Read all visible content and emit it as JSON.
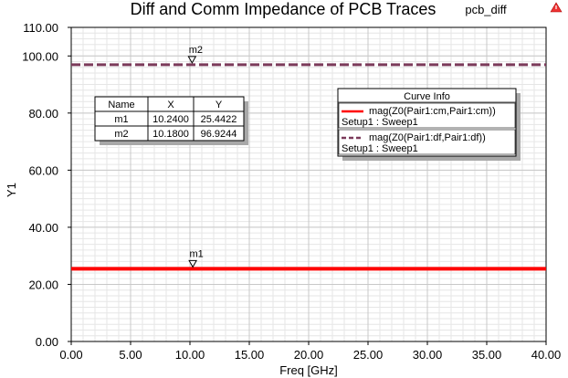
{
  "chart_data": {
    "type": "line",
    "title": "Diff and Comm Impedance of PCB Traces",
    "project_label": "pcb_diff",
    "xlabel": "Freq [GHz]",
    "ylabel": "Y1",
    "xlim": [
      0,
      40
    ],
    "ylim": [
      0,
      110
    ],
    "x_ticks": [
      0,
      5,
      10,
      15,
      20,
      25,
      30,
      35,
      40
    ],
    "x_tick_labels": [
      "0.00",
      "5.00",
      "10.00",
      "15.00",
      "20.00",
      "25.00",
      "30.00",
      "35.00",
      "40.00"
    ],
    "y_ticks": [
      0,
      20,
      40,
      60,
      80,
      100,
      110
    ],
    "y_tick_labels": [
      "0.00",
      "20.00",
      "40.00",
      "60.00",
      "80.00",
      "100.00",
      "110.00"
    ],
    "grid": true,
    "series": [
      {
        "name": "mag(Z0(Pair1:cm,Pair1:cm))",
        "setup": "Setup1 : Sweep1",
        "color": "#ff0000",
        "style": "solid",
        "x": [
          0,
          40
        ],
        "y": [
          25.4422,
          25.4422
        ]
      },
      {
        "name": "mag(Z0(Pair1:df,Pair1:df))",
        "setup": "Setup1 : Sweep1",
        "color": "#7b3a5a",
        "style": "dashed",
        "x": [
          0,
          40
        ],
        "y": [
          96.9244,
          96.9244
        ]
      }
    ],
    "markers": [
      {
        "name": "m1",
        "x": 10.24,
        "y": 25.4422
      },
      {
        "name": "m2",
        "x": 10.18,
        "y": 96.9244
      }
    ],
    "legend": {
      "title": "Curve Info",
      "placement": "top-right"
    },
    "marker_table": {
      "headers": [
        "Name",
        "X",
        "Y"
      ],
      "rows": [
        [
          "m1",
          "10.2400",
          "25.4422"
        ],
        [
          "m2",
          "10.1800",
          "96.9244"
        ]
      ],
      "placement": "top-left"
    }
  }
}
